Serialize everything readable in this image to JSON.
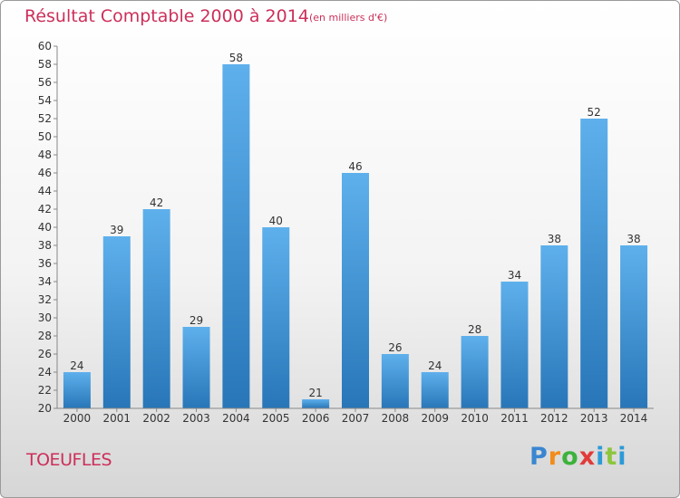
{
  "title": "Résultat Comptable 2000 à 2014",
  "subtitle": "(en milliers d'€)",
  "commune": "TOEUFLES",
  "brand": {
    "letters": [
      "P",
      "r",
      "o",
      "x",
      "i",
      "t",
      "i"
    ],
    "colors": [
      "#3a86d0",
      "#f28c1a",
      "#3cb23c",
      "#e23a3a",
      "#2c9ad8",
      "#8cc63f",
      "#2c9ad8"
    ]
  },
  "colors": {
    "accent": "#cc2f5a",
    "bar_light": "#5eb0ec",
    "bar_dark": "#2876b8",
    "label": "#333333"
  },
  "chart_data": {
    "type": "bar",
    "title": "Résultat Comptable 2000 à 2014",
    "xlabel": "",
    "ylabel": "",
    "categories": [
      "2000",
      "2001",
      "2002",
      "2003",
      "2004",
      "2005",
      "2006",
      "2007",
      "2008",
      "2009",
      "2010",
      "2011",
      "2012",
      "2013",
      "2014"
    ],
    "values": [
      24,
      39,
      42,
      29,
      58,
      40,
      21,
      46,
      26,
      24,
      28,
      34,
      38,
      52,
      38
    ],
    "ylim": [
      20,
      60
    ],
    "ytick_step": 2,
    "grid": false
  }
}
